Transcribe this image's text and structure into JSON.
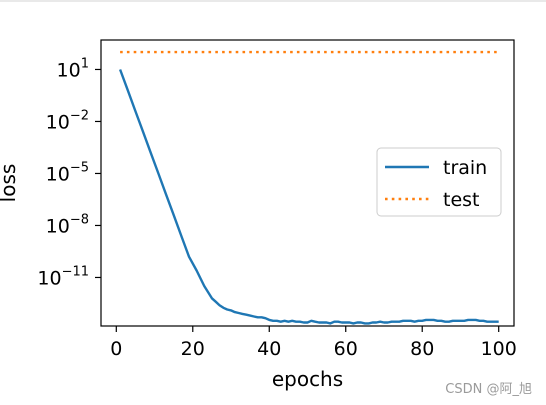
{
  "chart_data": {
    "type": "line",
    "xlabel": "epochs",
    "ylabel": "loss",
    "xlim": [
      -4,
      104
    ],
    "ylim_log10": [
      -13.8,
      2.7
    ],
    "yscale": "log",
    "grid": false,
    "legend_placement": "center-right",
    "x_ticks": [
      {
        "value": 0,
        "label": "0"
      },
      {
        "value": 20,
        "label": "20"
      },
      {
        "value": 40,
        "label": "40"
      },
      {
        "value": 60,
        "label": "60"
      },
      {
        "value": 80,
        "label": "80"
      },
      {
        "value": 100,
        "label": "100"
      }
    ],
    "y_ticks": [
      {
        "exp": 1,
        "base": "10",
        "sup": "1"
      },
      {
        "exp": -2,
        "base": "10",
        "sup": "−2"
      },
      {
        "exp": -5,
        "base": "10",
        "sup": "−5"
      },
      {
        "exp": -8,
        "base": "10",
        "sup": "−8"
      },
      {
        "exp": -11,
        "base": "10",
        "sup": "−11"
      }
    ],
    "series": [
      {
        "name": "train",
        "color": "#1f77b4",
        "style": "solid",
        "x": [
          1,
          3,
          5,
          7,
          9,
          11,
          13,
          15,
          17,
          19,
          21,
          23,
          25,
          26,
          27,
          28,
          29,
          30,
          31,
          32,
          33,
          34,
          35,
          36,
          37,
          38,
          39,
          40,
          41,
          42,
          43,
          44,
          45,
          46,
          47,
          48,
          49,
          50,
          51,
          52,
          53,
          54,
          55,
          56,
          57,
          58,
          59,
          60,
          61,
          62,
          63,
          64,
          65,
          66,
          67,
          68,
          69,
          70,
          71,
          72,
          73,
          74,
          75,
          76,
          77,
          78,
          79,
          80,
          81,
          82,
          83,
          84,
          85,
          86,
          87,
          88,
          89,
          90,
          91,
          92,
          93,
          94,
          95,
          96,
          97,
          98,
          99,
          100
        ],
        "y_log10": [
          1.0,
          -0.2,
          -1.4,
          -2.6,
          -3.8,
          -5.0,
          -6.2,
          -7.4,
          -8.6,
          -9.8,
          -10.6,
          -11.5,
          -12.2,
          -12.4,
          -12.6,
          -12.75,
          -12.85,
          -12.9,
          -13.0,
          -13.05,
          -13.1,
          -13.15,
          -13.2,
          -13.25,
          -13.3,
          -13.3,
          -13.35,
          -13.45,
          -13.5,
          -13.5,
          -13.55,
          -13.5,
          -13.55,
          -13.5,
          -13.55,
          -13.55,
          -13.6,
          -13.6,
          -13.5,
          -13.55,
          -13.6,
          -13.6,
          -13.6,
          -13.65,
          -13.55,
          -13.55,
          -13.6,
          -13.6,
          -13.6,
          -13.65,
          -13.6,
          -13.6,
          -13.65,
          -13.65,
          -13.6,
          -13.6,
          -13.55,
          -13.6,
          -13.6,
          -13.55,
          -13.55,
          -13.55,
          -13.5,
          -13.5,
          -13.5,
          -13.55,
          -13.5,
          -13.5,
          -13.45,
          -13.45,
          -13.45,
          -13.5,
          -13.5,
          -13.55,
          -13.55,
          -13.5,
          -13.5,
          -13.5,
          -13.5,
          -13.45,
          -13.45,
          -13.45,
          -13.5,
          -13.5,
          -13.55,
          -13.55,
          -13.55,
          -13.55
        ]
      },
      {
        "name": "test",
        "color": "#ff7f0e",
        "style": "dotted",
        "x": [
          1,
          100
        ],
        "y_log10": [
          2.0,
          2.0
        ]
      }
    ]
  },
  "watermark": "CSDN @阿_旭"
}
